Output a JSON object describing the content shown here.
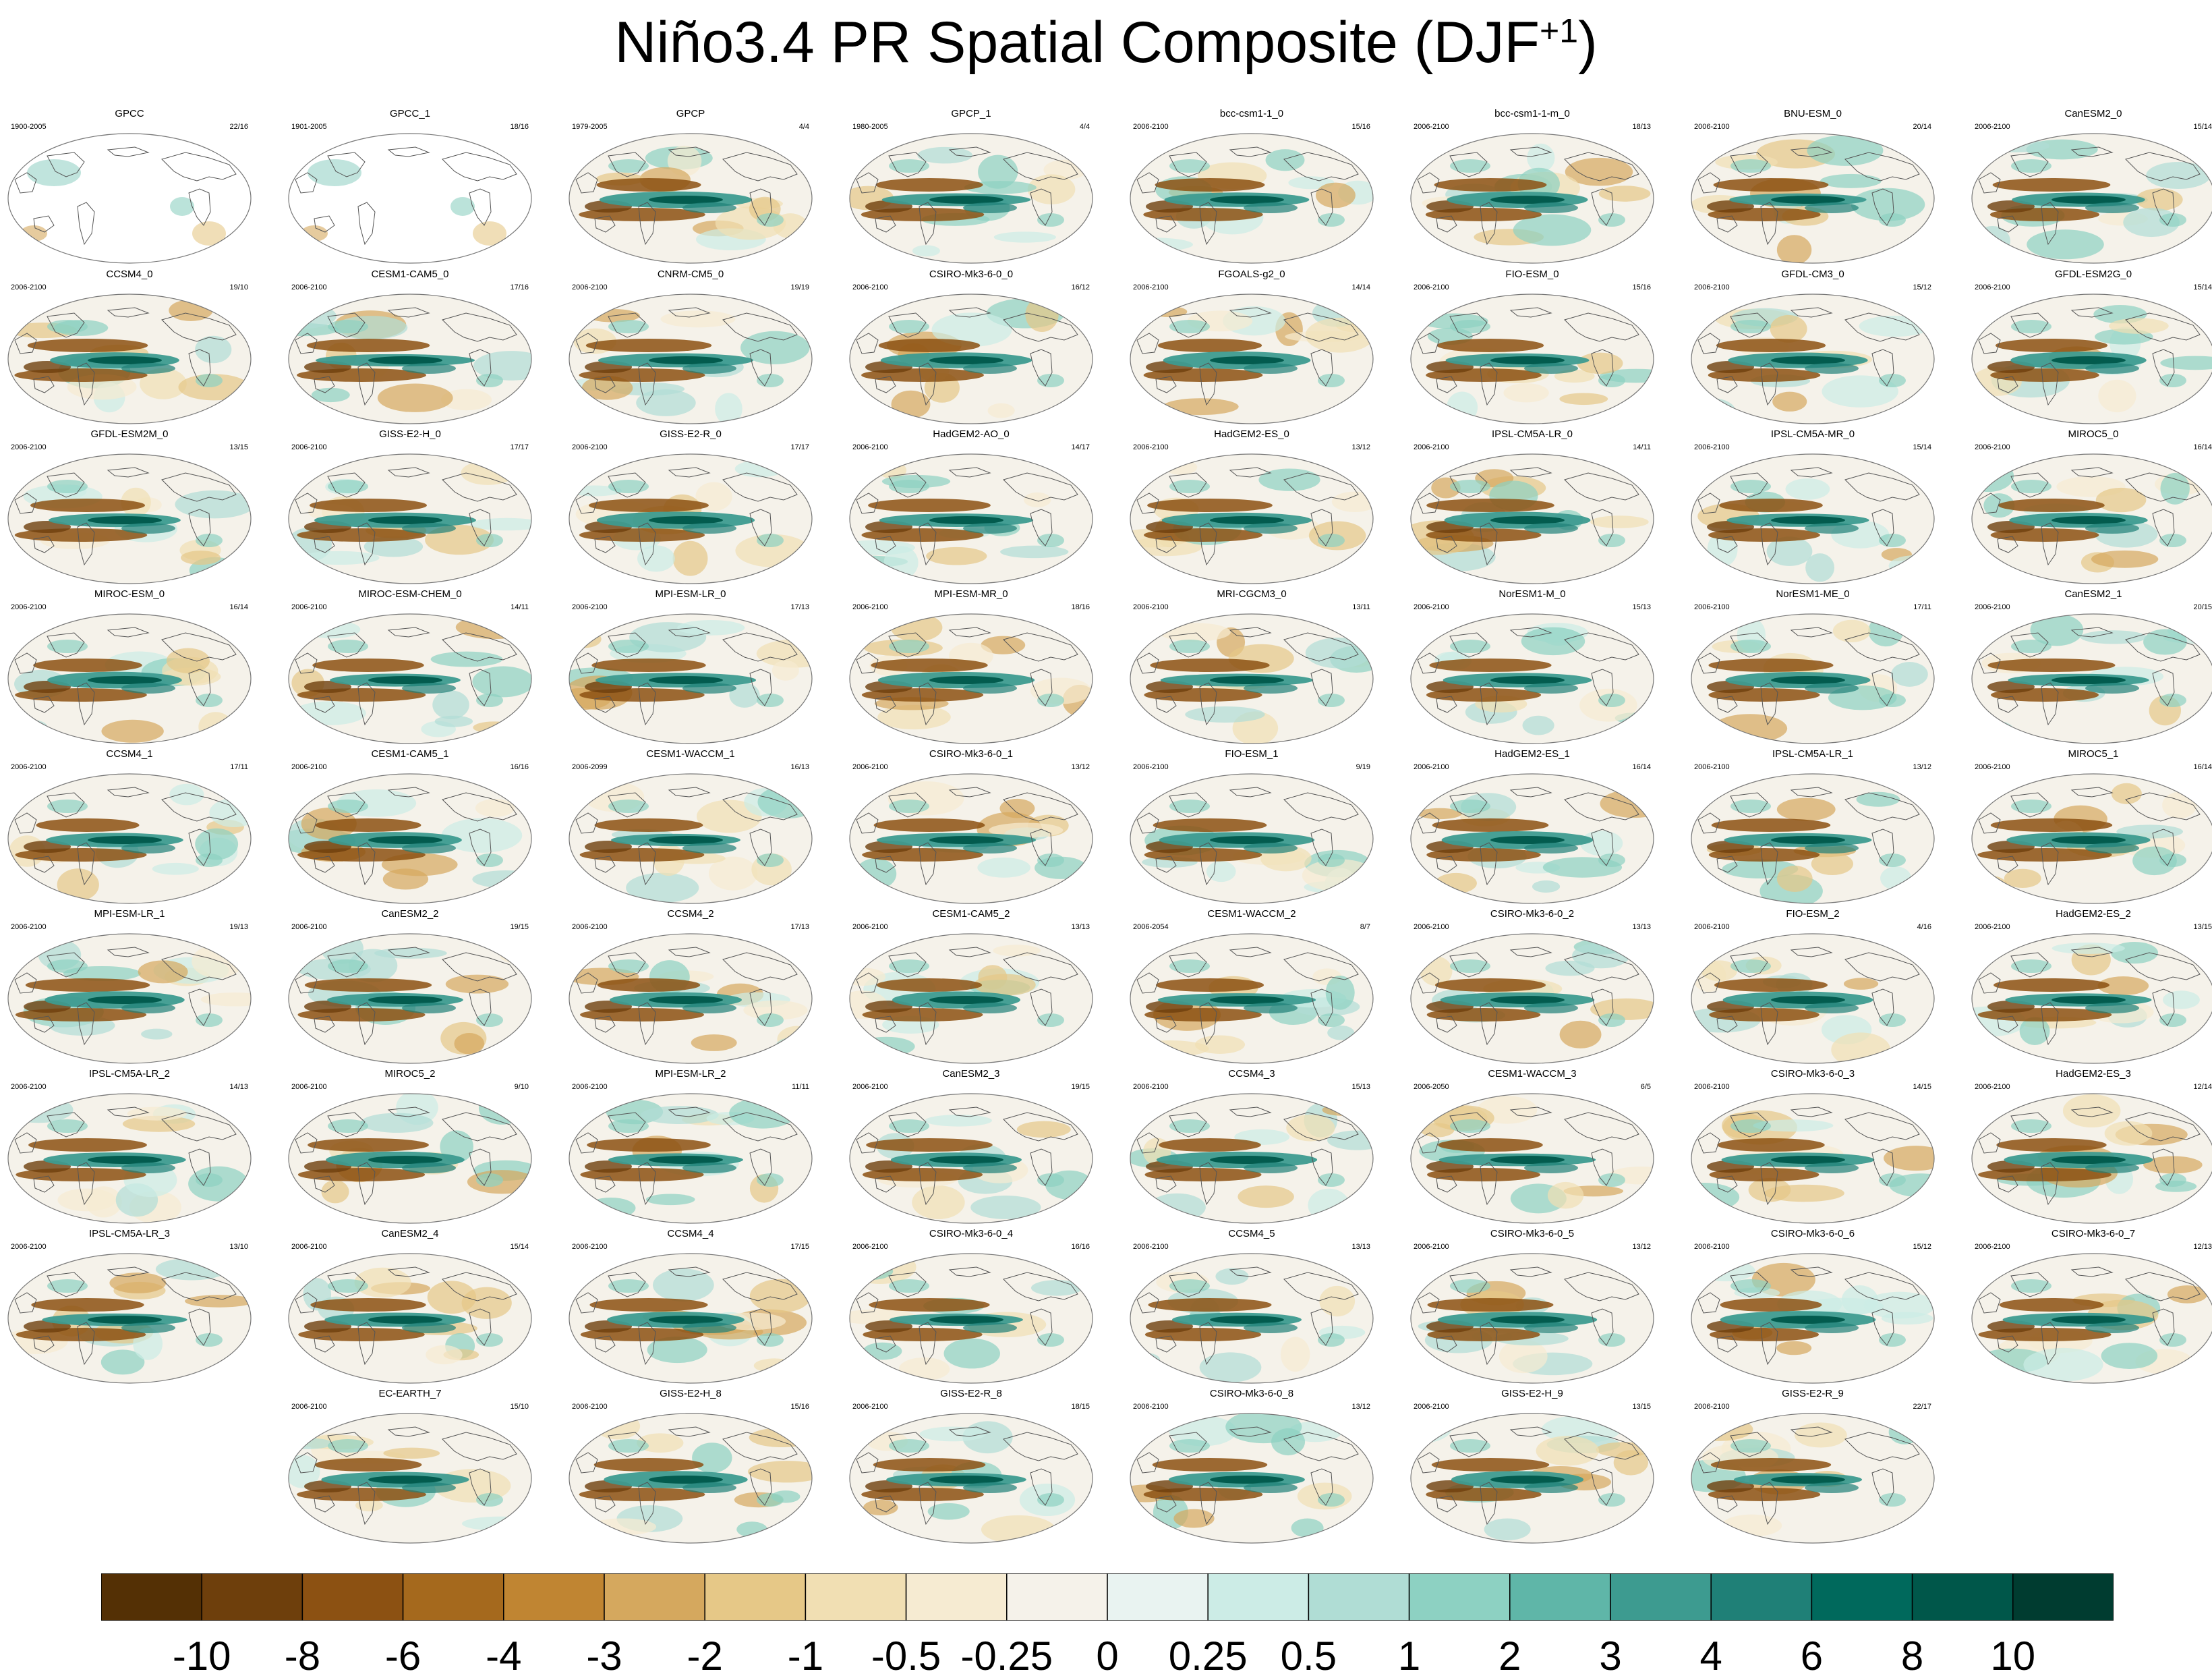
{
  "title": "Niño3.4 PR Spatial Composite (DJF",
  "title_superscript": "+1",
  "title_suffix": ")",
  "chart_data": {
    "type": "heatmap",
    "description_title": "Niño3.4 PR Spatial Composite (DJF+1)",
    "panels": [
      {
        "name": "GPCC",
        "years": "1900-2005",
        "count": "22/16"
      },
      {
        "name": "GPCC_1",
        "years": "1901-2005",
        "count": "18/16"
      },
      {
        "name": "GPCP",
        "years": "1979-2005",
        "count": "4/4"
      },
      {
        "name": "GPCP_1",
        "years": "1980-2005",
        "count": "4/4"
      },
      {
        "name": "bcc-csm1-1_0",
        "years": "2006-2100",
        "count": "15/16"
      },
      {
        "name": "bcc-csm1-1-m_0",
        "years": "2006-2100",
        "count": "18/13"
      },
      {
        "name": "BNU-ESM_0",
        "years": "2006-2100",
        "count": "20/14"
      },
      {
        "name": "CanESM2_0",
        "years": "2006-2100",
        "count": "15/14"
      },
      {
        "name": "CCSM4_0",
        "years": "2006-2100",
        "count": "19/10"
      },
      {
        "name": "CESM1-CAM5_0",
        "years": "2006-2100",
        "count": "17/16"
      },
      {
        "name": "CNRM-CM5_0",
        "years": "2006-2100",
        "count": "19/19"
      },
      {
        "name": "CSIRO-Mk3-6-0_0",
        "years": "2006-2100",
        "count": "16/12"
      },
      {
        "name": "FGOALS-g2_0",
        "years": "2006-2100",
        "count": "14/14"
      },
      {
        "name": "FIO-ESM_0",
        "years": "2006-2100",
        "count": "15/16"
      },
      {
        "name": "GFDL-CM3_0",
        "years": "2006-2100",
        "count": "15/12"
      },
      {
        "name": "GFDL-ESM2G_0",
        "years": "2006-2100",
        "count": "15/14"
      },
      {
        "name": "GFDL-ESM2M_0",
        "years": "2006-2100",
        "count": "13/15"
      },
      {
        "name": "GISS-E2-H_0",
        "years": "2006-2100",
        "count": "17/17"
      },
      {
        "name": "GISS-E2-R_0",
        "years": "2006-2100",
        "count": "17/17"
      },
      {
        "name": "HadGEM2-AO_0",
        "years": "2006-2100",
        "count": "14/17"
      },
      {
        "name": "HadGEM2-ES_0",
        "years": "2006-2100",
        "count": "13/12"
      },
      {
        "name": "IPSL-CM5A-LR_0",
        "years": "2006-2100",
        "count": "14/11"
      },
      {
        "name": "IPSL-CM5A-MR_0",
        "years": "2006-2100",
        "count": "15/14"
      },
      {
        "name": "MIROC5_0",
        "years": "2006-2100",
        "count": "16/14"
      },
      {
        "name": "MIROC-ESM_0",
        "years": "2006-2100",
        "count": "16/14"
      },
      {
        "name": "MIROC-ESM-CHEM_0",
        "years": "2006-2100",
        "count": "14/11"
      },
      {
        "name": "MPI-ESM-LR_0",
        "years": "2006-2100",
        "count": "17/13"
      },
      {
        "name": "MPI-ESM-MR_0",
        "years": "2006-2100",
        "count": "18/16"
      },
      {
        "name": "MRI-CGCM3_0",
        "years": "2006-2100",
        "count": "13/11"
      },
      {
        "name": "NorESM1-M_0",
        "years": "2006-2100",
        "count": "15/13"
      },
      {
        "name": "NorESM1-ME_0",
        "years": "2006-2100",
        "count": "17/11"
      },
      {
        "name": "CanESM2_1",
        "years": "2006-2100",
        "count": "20/15"
      },
      {
        "name": "CCSM4_1",
        "years": "2006-2100",
        "count": "17/11"
      },
      {
        "name": "CESM1-CAM5_1",
        "years": "2006-2100",
        "count": "16/16"
      },
      {
        "name": "CESM1-WACCM_1",
        "years": "2006-2099",
        "count": "16/13"
      },
      {
        "name": "CSIRO-Mk3-6-0_1",
        "years": "2006-2100",
        "count": "13/12"
      },
      {
        "name": "FIO-ESM_1",
        "years": "2006-2100",
        "count": "9/19"
      },
      {
        "name": "HadGEM2-ES_1",
        "years": "2006-2100",
        "count": "16/14"
      },
      {
        "name": "IPSL-CM5A-LR_1",
        "years": "2006-2100",
        "count": "13/12"
      },
      {
        "name": "MIROC5_1",
        "years": "2006-2100",
        "count": "16/14"
      },
      {
        "name": "MPI-ESM-LR_1",
        "years": "2006-2100",
        "count": "19/13"
      },
      {
        "name": "CanESM2_2",
        "years": "2006-2100",
        "count": "19/15"
      },
      {
        "name": "CCSM4_2",
        "years": "2006-2100",
        "count": "17/13"
      },
      {
        "name": "CESM1-CAM5_2",
        "years": "2006-2100",
        "count": "13/13"
      },
      {
        "name": "CESM1-WACCM_2",
        "years": "2006-2054",
        "count": "8/7"
      },
      {
        "name": "CSIRO-Mk3-6-0_2",
        "years": "2006-2100",
        "count": "13/13"
      },
      {
        "name": "FIO-ESM_2",
        "years": "2006-2100",
        "count": "4/16"
      },
      {
        "name": "HadGEM2-ES_2",
        "years": "2006-2100",
        "count": "13/15"
      },
      {
        "name": "IPSL-CM5A-LR_2",
        "years": "2006-2100",
        "count": "14/13"
      },
      {
        "name": "MIROC5_2",
        "years": "2006-2100",
        "count": "9/10"
      },
      {
        "name": "MPI-ESM-LR_2",
        "years": "2006-2100",
        "count": "11/11"
      },
      {
        "name": "CanESM2_3",
        "years": "2006-2100",
        "count": "19/15"
      },
      {
        "name": "CCSM4_3",
        "years": "2006-2100",
        "count": "15/13"
      },
      {
        "name": "CESM1-WACCM_3",
        "years": "2006-2050",
        "count": "6/5"
      },
      {
        "name": "CSIRO-Mk3-6-0_3",
        "years": "2006-2100",
        "count": "14/15"
      },
      {
        "name": "HadGEM2-ES_3",
        "years": "2006-2100",
        "count": "12/14"
      },
      {
        "name": "IPSL-CM5A-LR_3",
        "years": "2006-2100",
        "count": "13/10"
      },
      {
        "name": "CanESM2_4",
        "years": "2006-2100",
        "count": "15/14"
      },
      {
        "name": "CCSM4_4",
        "years": "2006-2100",
        "count": "17/15"
      },
      {
        "name": "CSIRO-Mk3-6-0_4",
        "years": "2006-2100",
        "count": "16/16"
      },
      {
        "name": "CCSM4_5",
        "years": "2006-2100",
        "count": "13/13"
      },
      {
        "name": "CSIRO-Mk3-6-0_5",
        "years": "2006-2100",
        "count": "13/12"
      },
      {
        "name": "CSIRO-Mk3-6-0_6",
        "years": "2006-2100",
        "count": "15/12"
      },
      {
        "name": "CSIRO-Mk3-6-0_7",
        "years": "2006-2100",
        "count": "12/13"
      },
      {
        "name": "EC-EARTH_7",
        "years": "2006-2100",
        "count": "15/10"
      },
      {
        "name": "GISS-E2-H_8",
        "years": "2006-2100",
        "count": "15/16"
      },
      {
        "name": "GISS-E2-R_8",
        "years": "2006-2100",
        "count": "18/15"
      },
      {
        "name": "CSIRO-Mk3-6-0_8",
        "years": "2006-2100",
        "count": "13/12"
      },
      {
        "name": "GISS-E2-H_9",
        "years": "2006-2100",
        "count": "13/15"
      },
      {
        "name": "GISS-E2-R_9",
        "years": "2006-2100",
        "count": "22/17"
      }
    ],
    "colorbar": {
      "labels": [
        "-10",
        "-8",
        "-6",
        "-4",
        "-3",
        "-2",
        "-1",
        "-0.5",
        "-0.25",
        "0",
        "0.25",
        "0.5",
        "1",
        "2",
        "3",
        "4",
        "6",
        "8",
        "10"
      ],
      "colors": [
        "#543005",
        "#6e3f0c",
        "#8c5112",
        "#a5691d",
        "#c08532",
        "#d5a85e",
        "#e6c887",
        "#f1dfb3",
        "#f6ebd2",
        "#f5f2ea",
        "#e9f3f1",
        "#ccece6",
        "#b0ddd5",
        "#8dd1c2",
        "#5fb6a8",
        "#3d9b90",
        "#1f8077",
        "#00695c",
        "#00574a",
        "#003c30"
      ]
    }
  }
}
